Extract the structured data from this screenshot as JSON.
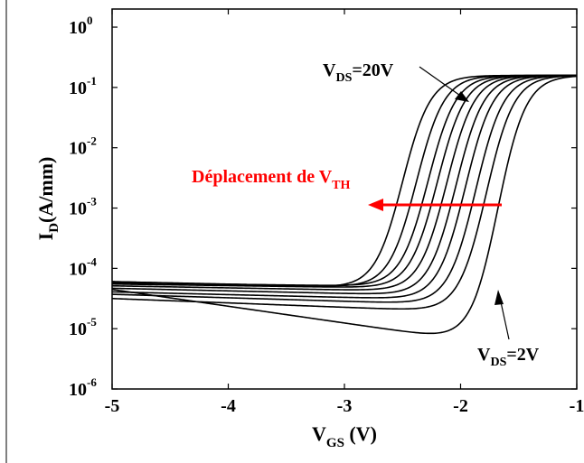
{
  "chart_data": {
    "type": "line",
    "xlabel": {
      "main": "V",
      "sub": "GS",
      "unit": " (V)"
    },
    "ylabel": {
      "main": "I",
      "sub": "D",
      "unit": "(A/mm)"
    },
    "xlim": [
      -5,
      -1
    ],
    "ylim_log10": [
      -6,
      0.3
    ],
    "y_scale": "log",
    "grid": false,
    "x_ticks": [
      -5,
      -4,
      -3,
      -2,
      -1
    ],
    "x_tick_labels": [
      "-5",
      "-4",
      "-3",
      "-2",
      "-1"
    ],
    "y_ticks": [
      {
        "base": "10",
        "exp": "0"
      },
      {
        "base": "10",
        "exp": "-1"
      },
      {
        "base": "10",
        "exp": "-2"
      },
      {
        "base": "10",
        "exp": "-3"
      },
      {
        "base": "10",
        "exp": "-4"
      },
      {
        "base": "10",
        "exp": "-5"
      },
      {
        "base": "10",
        "exp": "-6"
      }
    ],
    "annotations": {
      "top_label": {
        "main": "V",
        "sub": "DS",
        "value": "=20V"
      },
      "bottom_label": {
        "main": "V",
        "sub": "DS",
        "value": "=2V"
      },
      "shift_label": {
        "main": "Déplacement de V",
        "sub": "TH",
        "color": "#ff0000"
      }
    },
    "series_note": "Ten transfer curves, V_DS stepping from 2V to 20V",
    "series": [
      {
        "vth": -1.68,
        "left": -4.35,
        "min": -5.22,
        "minx": -1.87,
        "fl": 0.06,
        "sat": -0.8,
        "w": 0.25
      },
      {
        "vth": -1.78,
        "left": -4.5,
        "min": -4.72,
        "minx": -1.97,
        "fl": 0.05,
        "sat": -0.8,
        "w": 0.25
      },
      {
        "vth": -1.87,
        "left": -4.43,
        "min": -4.6,
        "minx": -2.05,
        "fl": 0.04,
        "sat": -0.8,
        "w": 0.25
      },
      {
        "vth": -1.96,
        "left": -4.39,
        "min": -4.52,
        "minx": -2.13,
        "fl": 0.03,
        "sat": -0.8,
        "w": 0.25
      },
      {
        "vth": -2.04,
        "left": -4.33,
        "min": -4.45,
        "minx": -2.21,
        "fl": 0.03,
        "sat": -0.8,
        "w": 0.25
      },
      {
        "vth": -2.12,
        "left": -4.29,
        "min": -4.38,
        "minx": -2.3,
        "fl": 0.02,
        "sat": -0.8,
        "w": 0.25
      },
      {
        "vth": -2.2,
        "left": -4.26,
        "min": -4.33,
        "minx": -2.38,
        "fl": 0.02,
        "sat": -0.8,
        "w": 0.25
      },
      {
        "vth": -2.28,
        "left": -4.24,
        "min": -4.3,
        "minx": -2.47,
        "fl": 0.02,
        "sat": -0.8,
        "w": 0.25
      },
      {
        "vth": -2.38,
        "left": -4.22,
        "min": -4.32,
        "minx": -2.57,
        "fl": 0.02,
        "sat": -0.8,
        "w": 0.25
      },
      {
        "vth": -2.5,
        "left": -4.22,
        "min": -4.33,
        "minx": -2.7,
        "fl": 0.02,
        "sat": -0.8,
        "w": 0.25
      }
    ]
  }
}
